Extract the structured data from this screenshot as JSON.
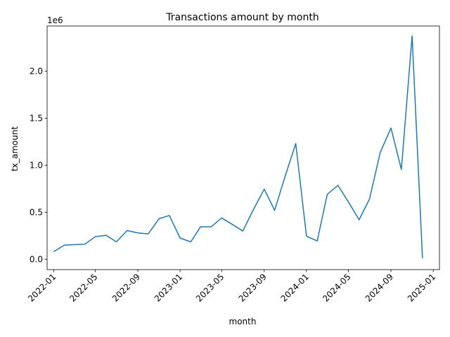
{
  "chart_data": {
    "type": "line",
    "title": "Transactions amount by month",
    "xlabel": "month",
    "ylabel": "tx_amount",
    "y_scale_note": "1e6",
    "grid": false,
    "legend": "none",
    "line_color": "#1f77b4",
    "x_ticks": [
      "2022-01",
      "2022-05",
      "2022-09",
      "2023-01",
      "2023-05",
      "2023-09",
      "2024-01",
      "2024-05",
      "2024-09",
      "2025-01"
    ],
    "y_ticks": [
      "0.0",
      "0.5",
      "1.0",
      "1.5",
      "2.0"
    ],
    "y_tick_values": [
      0,
      500000,
      1000000,
      1500000,
      2000000
    ],
    "xlim": [
      "2021-12-13",
      "2025-01-19"
    ],
    "ylim": [
      -110000,
      2480000
    ],
    "series": [
      {
        "x": [
          "2022-01-01",
          "2022-02-01",
          "2022-03-01",
          "2022-04-01",
          "2022-05-01",
          "2022-06-01",
          "2022-07-01",
          "2022-08-01",
          "2022-09-01",
          "2022-10-01",
          "2022-11-01",
          "2022-12-01",
          "2023-01-01",
          "2023-02-01",
          "2023-03-01",
          "2023-04-01",
          "2023-05-01",
          "2023-06-01",
          "2023-07-01",
          "2023-08-01",
          "2023-09-01",
          "2023-10-01",
          "2023-11-01",
          "2023-12-01",
          "2024-01-01",
          "2024-02-01",
          "2024-03-01",
          "2024-04-01",
          "2024-05-01",
          "2024-06-01",
          "2024-07-01",
          "2024-08-01",
          "2024-09-01",
          "2024-10-01",
          "2024-11-01",
          "2024-12-01"
        ],
        "y": [
          80000,
          150000,
          155000,
          160000,
          240000,
          255000,
          185000,
          305000,
          280000,
          270000,
          430000,
          465000,
          225000,
          185000,
          345000,
          345000,
          440000,
          370000,
          300000,
          530000,
          745000,
          520000,
          890000,
          1230000,
          245000,
          195000,
          690000,
          785000,
          610000,
          420000,
          640000,
          1135000,
          1395000,
          955000,
          2375000,
          10000
        ]
      }
    ]
  }
}
